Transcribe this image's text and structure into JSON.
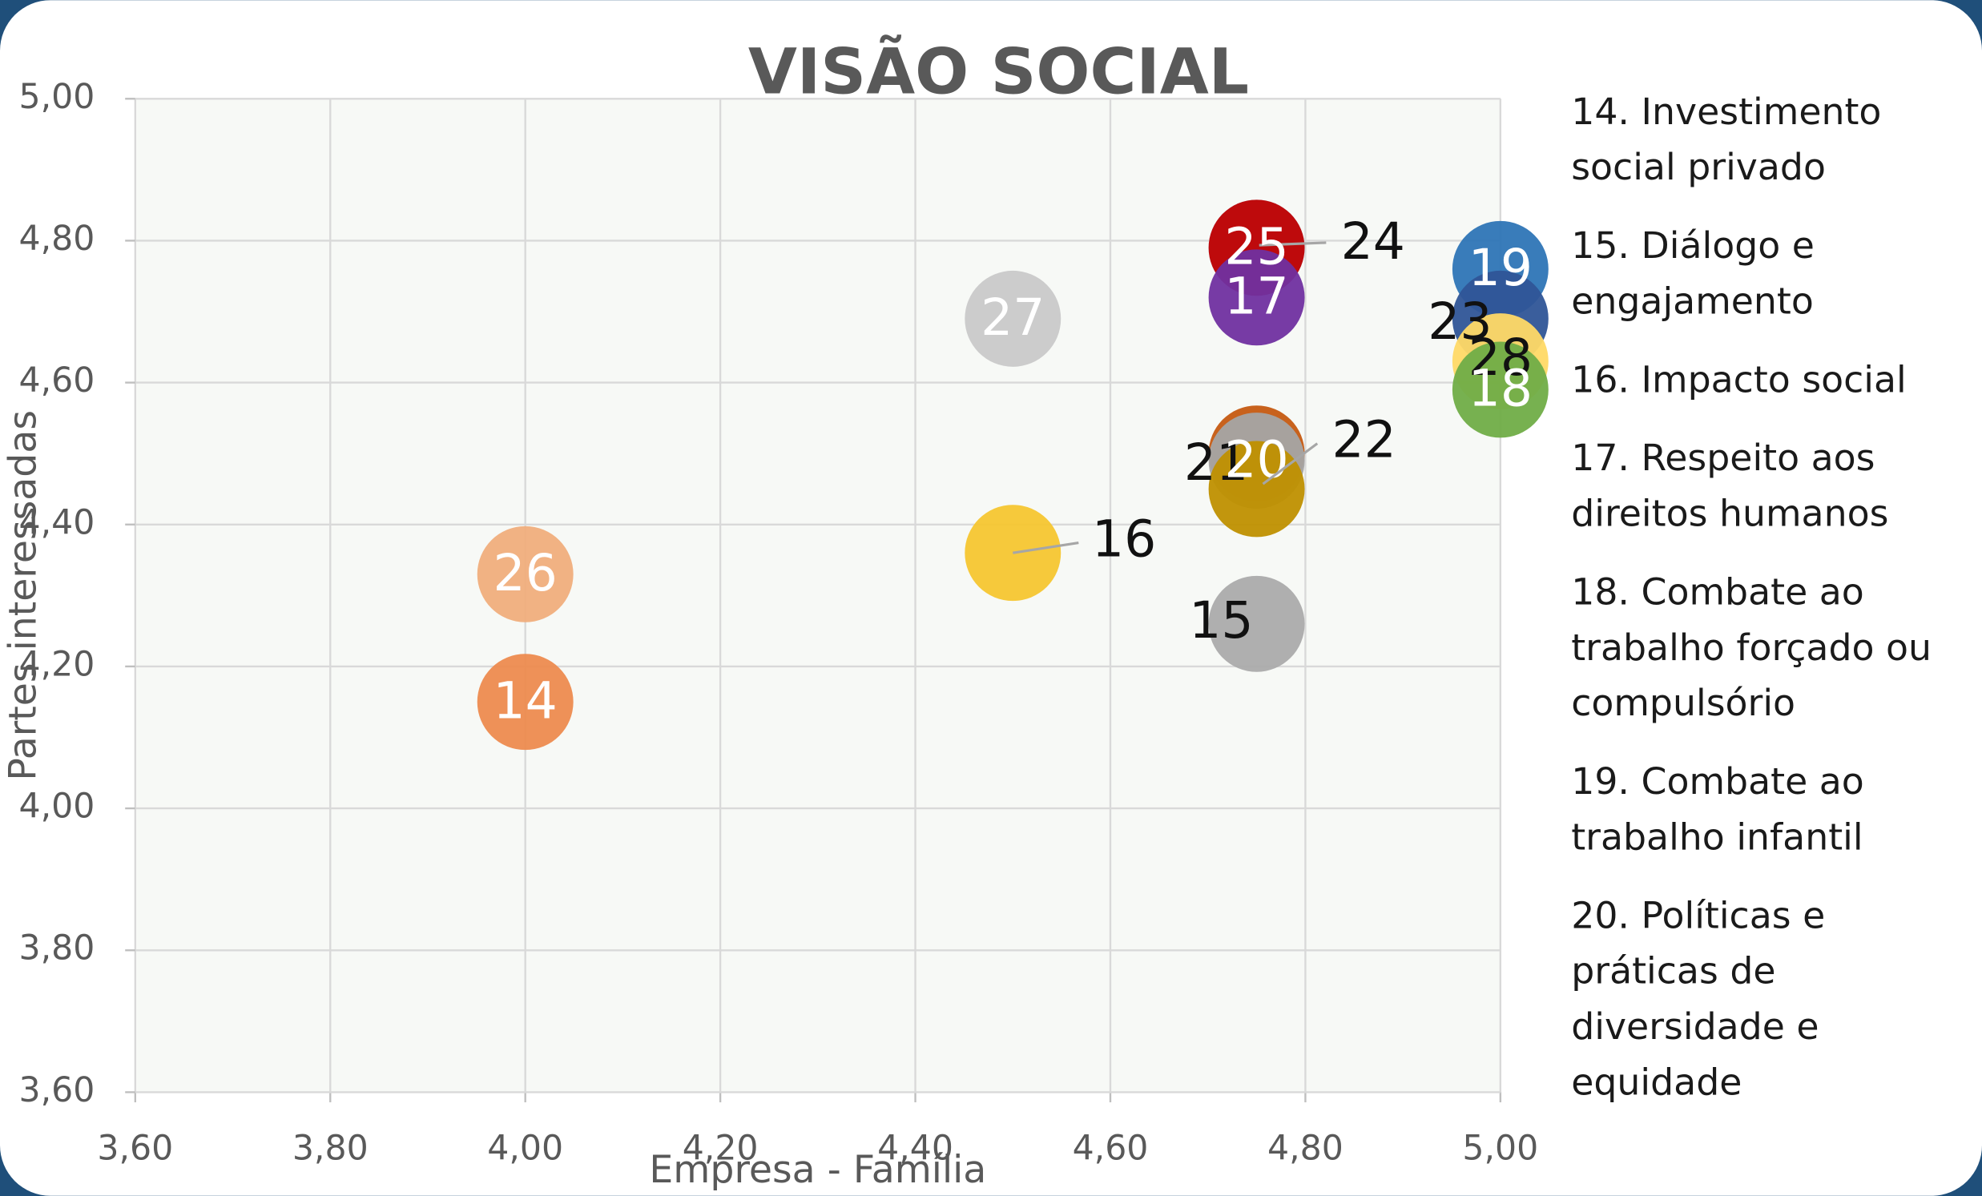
{
  "chart_data": {
    "type": "scatter",
    "title": "VISÃO SOCIAL",
    "x_label": "Empresa - Família",
    "y_label": "Partes interessadas",
    "xlim": [
      3.6,
      5.0
    ],
    "ylim": [
      3.6,
      5.0
    ],
    "xticks": [
      {
        "value": 3.6,
        "label": "3,60"
      },
      {
        "value": 3.8,
        "label": "3,80"
      },
      {
        "value": 4.0,
        "label": "4,00"
      },
      {
        "value": 4.2,
        "label": "4,20"
      },
      {
        "value": 4.4,
        "label": "4,40"
      },
      {
        "value": 4.6,
        "label": "4,60"
      },
      {
        "value": 4.8,
        "label": "4,80"
      },
      {
        "value": 5.0,
        "label": "5,00"
      }
    ],
    "yticks": [
      {
        "value": 3.6,
        "label": "3,60"
      },
      {
        "value": 3.8,
        "label": "3,80"
      },
      {
        "value": 4.0,
        "label": "4,00"
      },
      {
        "value": 4.2,
        "label": "4,20"
      },
      {
        "value": 4.4,
        "label": "4,40"
      },
      {
        "value": 4.6,
        "label": "4,60"
      },
      {
        "value": 4.8,
        "label": "4,80"
      },
      {
        "value": 5.0,
        "label": "5,00"
      }
    ],
    "grid": true,
    "labels": [
      "14",
      "26",
      "27",
      "16",
      "15",
      "24",
      "25",
      "17",
      "21",
      "20",
      "22",
      "19",
      "23",
      "28",
      "18"
    ],
    "x": [
      4.0,
      4.0,
      4.5,
      4.5,
      4.75,
      4.75,
      4.75,
      4.75,
      4.75,
      4.75,
      4.75,
      5.0,
      5.0,
      5.0,
      5.0
    ],
    "values": [
      4.15,
      4.33,
      4.69,
      4.36,
      4.26,
      4.79,
      4.79,
      4.72,
      4.5,
      4.49,
      4.45,
      4.76,
      4.69,
      4.63,
      4.59
    ],
    "colors": [
      "#ED8B4F",
      "#F0AE7C",
      "#C9C9C9",
      "#F6C630",
      "#ABABAB",
      "#9DB7E0",
      "#C00000",
      "#7030A0",
      "#C55A11",
      "#A5A5A5",
      "#BF9000",
      "#2E75B6",
      "#2F5597",
      "#FFD966",
      "#70AD47"
    ],
    "legend": [
      "14. Investimento social privado",
      "15. Diálogo e engajamento",
      "16. Impacto social",
      "17. Respeito aos direitos humanos",
      "18. Combate ao trabalho forçado ou compulsório",
      "19. Combate ao trabalho infantil",
      "20. Políticas e práticas de diversidade e equidade"
    ]
  }
}
